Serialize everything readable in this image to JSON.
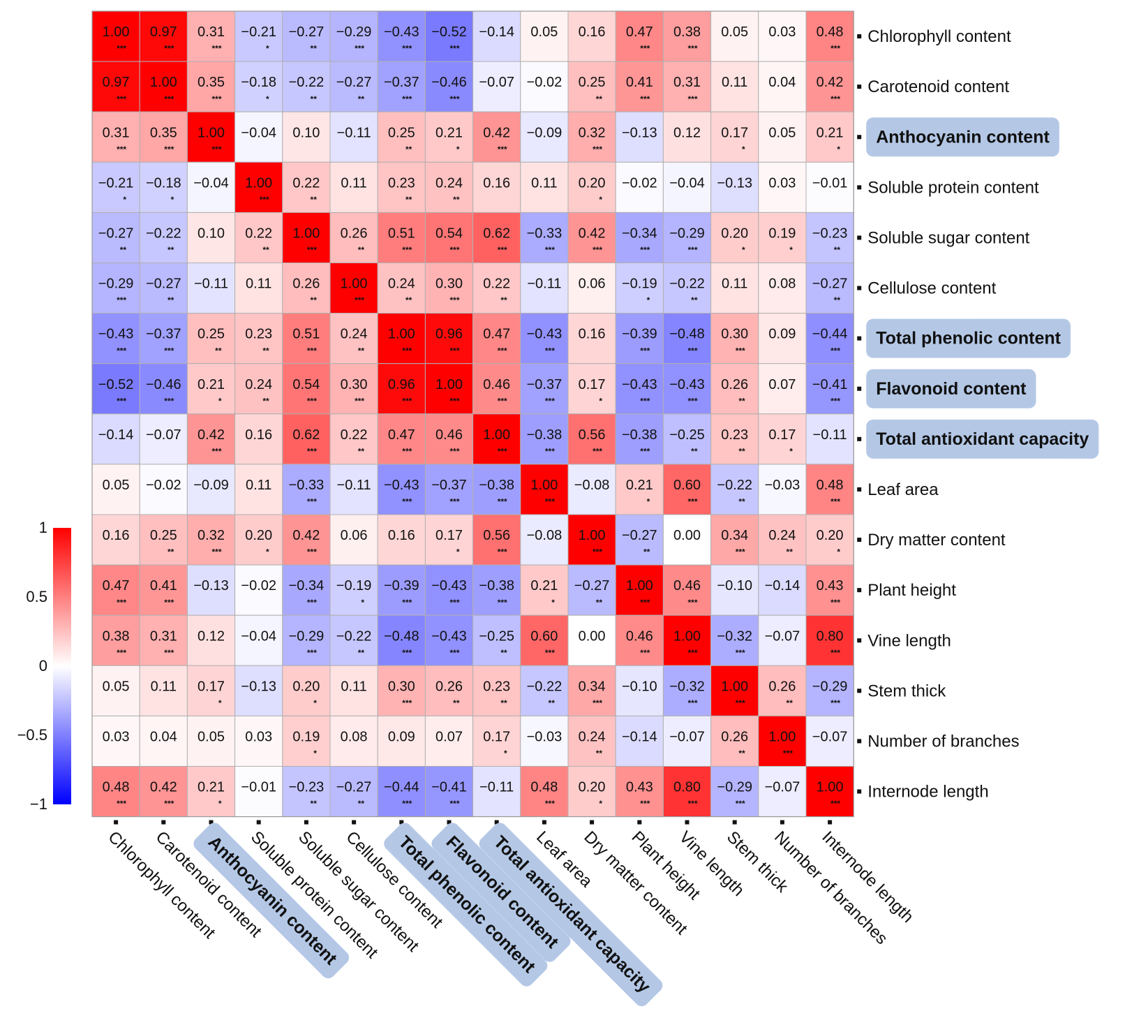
{
  "chart_data": {
    "type": "heatmap",
    "title": "",
    "variables": [
      "Chlorophyll content",
      "Carotenoid content",
      "Anthocyanin content",
      "Soluble protein content",
      "Soluble sugar content",
      "Cellulose content",
      "Total phenolic content",
      "Flavonoid content",
      "Total antioxidant capacity",
      "Leaf area",
      "Dry matter content",
      "Plant height",
      "Vine length",
      "Stem thick",
      "Number of branches",
      "Internode length"
    ],
    "highlighted": [
      "Anthocyanin content",
      "Total phenolic content",
      "Flavonoid content",
      "Total antioxidant capacity"
    ],
    "values": [
      [
        1.0,
        0.97,
        0.31,
        -0.21,
        -0.27,
        -0.29,
        -0.43,
        -0.52,
        -0.14,
        0.05,
        0.16,
        0.47,
        0.38,
        0.05,
        0.03,
        0.48
      ],
      [
        0.97,
        1.0,
        0.35,
        -0.18,
        -0.22,
        -0.27,
        -0.37,
        -0.46,
        -0.07,
        -0.02,
        0.25,
        0.41,
        0.31,
        0.11,
        0.04,
        0.42
      ],
      [
        0.31,
        0.35,
        1.0,
        -0.04,
        0.1,
        -0.11,
        0.25,
        0.21,
        0.42,
        -0.09,
        0.32,
        -0.13,
        0.12,
        0.17,
        0.05,
        0.21
      ],
      [
        -0.21,
        -0.18,
        -0.04,
        1.0,
        0.22,
        0.11,
        0.23,
        0.24,
        0.16,
        0.11,
        0.2,
        -0.02,
        -0.04,
        -0.13,
        0.03,
        -0.01
      ],
      [
        -0.27,
        -0.22,
        0.1,
        0.22,
        1.0,
        0.26,
        0.51,
        0.54,
        0.62,
        -0.33,
        0.42,
        -0.34,
        -0.29,
        0.2,
        0.19,
        -0.23
      ],
      [
        -0.29,
        -0.27,
        -0.11,
        0.11,
        0.26,
        1.0,
        0.24,
        0.3,
        0.22,
        -0.11,
        0.06,
        -0.19,
        -0.22,
        0.11,
        0.08,
        -0.27
      ],
      [
        -0.43,
        -0.37,
        0.25,
        0.23,
        0.51,
        0.24,
        1.0,
        0.96,
        0.47,
        -0.43,
        0.16,
        -0.39,
        -0.48,
        0.3,
        0.09,
        -0.44
      ],
      [
        -0.52,
        -0.46,
        0.21,
        0.24,
        0.54,
        0.3,
        0.96,
        1.0,
        0.46,
        -0.37,
        0.17,
        -0.43,
        -0.43,
        0.26,
        0.07,
        -0.41
      ],
      [
        -0.14,
        -0.07,
        0.42,
        0.16,
        0.62,
        0.22,
        0.47,
        0.46,
        1.0,
        -0.38,
        0.56,
        -0.38,
        -0.25,
        0.23,
        0.17,
        -0.11
      ],
      [
        0.05,
        -0.02,
        -0.09,
        0.11,
        -0.33,
        -0.11,
        -0.43,
        -0.37,
        -0.38,
        1.0,
        -0.08,
        0.21,
        0.6,
        -0.22,
        -0.03,
        0.48
      ],
      [
        0.16,
        0.25,
        0.32,
        0.2,
        0.42,
        0.06,
        0.16,
        0.17,
        0.56,
        -0.08,
        1.0,
        -0.27,
        0.0,
        0.34,
        0.24,
        0.2
      ],
      [
        0.47,
        0.41,
        -0.13,
        -0.02,
        -0.34,
        -0.19,
        -0.39,
        -0.43,
        -0.38,
        0.21,
        -0.27,
        1.0,
        0.46,
        -0.1,
        -0.14,
        0.43
      ],
      [
        0.38,
        0.31,
        0.12,
        -0.04,
        -0.29,
        -0.22,
        -0.48,
        -0.43,
        -0.25,
        0.6,
        0.0,
        0.46,
        1.0,
        -0.32,
        -0.07,
        0.8
      ],
      [
        0.05,
        0.11,
        0.17,
        -0.13,
        0.2,
        0.11,
        0.3,
        0.26,
        0.23,
        -0.22,
        0.34,
        -0.1,
        -0.32,
        1.0,
        0.26,
        -0.29
      ],
      [
        0.03,
        0.04,
        0.05,
        0.03,
        0.19,
        0.08,
        0.09,
        0.07,
        0.17,
        -0.03,
        0.24,
        -0.14,
        -0.07,
        0.26,
        1.0,
        -0.07
      ],
      [
        0.48,
        0.42,
        0.21,
        -0.01,
        -0.23,
        -0.27,
        -0.44,
        -0.41,
        -0.11,
        0.48,
        0.2,
        0.43,
        0.8,
        -0.29,
        -0.07,
        1.0
      ]
    ],
    "significance": [
      [
        "***",
        "***",
        "***",
        "*",
        "**",
        "***",
        "***",
        "***",
        "",
        "",
        "",
        "***",
        "***",
        "",
        "",
        "***"
      ],
      [
        "***",
        "***",
        "***",
        "*",
        "**",
        "**",
        "***",
        "***",
        "",
        "",
        "**",
        "***",
        "***",
        "",
        "",
        "***"
      ],
      [
        "***",
        "***",
        "***",
        "",
        "",
        "",
        "**",
        "*",
        "***",
        "",
        "***",
        "",
        "",
        "*",
        "",
        "*"
      ],
      [
        "*",
        "*",
        "",
        "***",
        "**",
        "",
        "**",
        "**",
        "",
        "",
        "*",
        "",
        "",
        "",
        "",
        ""
      ],
      [
        "**",
        "**",
        "",
        "**",
        "***",
        "**",
        "***",
        "***",
        "***",
        "***",
        "***",
        "***",
        "***",
        "*",
        "*",
        "**"
      ],
      [
        "***",
        "**",
        "",
        "",
        "**",
        "***",
        "**",
        "***",
        "**",
        "",
        "",
        "*",
        "**",
        "",
        "",
        "**"
      ],
      [
        "***",
        "***",
        "**",
        "**",
        "***",
        "**",
        "***",
        "***",
        "***",
        "***",
        "",
        "***",
        "***",
        "***",
        "",
        "***"
      ],
      [
        "***",
        "***",
        "*",
        "**",
        "***",
        "***",
        "***",
        "***",
        "***",
        "***",
        "*",
        "***",
        "***",
        "**",
        "",
        "***"
      ],
      [
        "",
        "",
        "***",
        "",
        "***",
        "**",
        "***",
        "***",
        "***",
        "***",
        "***",
        "***",
        "**",
        "**",
        "*",
        ""
      ],
      [
        "",
        "",
        "",
        "",
        "***",
        "",
        "***",
        "***",
        "***",
        "***",
        "",
        "*",
        "***",
        "**",
        "",
        "***"
      ],
      [
        "",
        "**",
        "***",
        "*",
        "***",
        "",
        "",
        "*",
        "***",
        "",
        "***",
        "**",
        "",
        "***",
        "**",
        "*"
      ],
      [
        "***",
        "***",
        "",
        "",
        "***",
        "*",
        "***",
        "***",
        "***",
        "*",
        "**",
        "***",
        "***",
        "",
        "",
        "***"
      ],
      [
        "***",
        "***",
        "",
        "",
        "***",
        "**",
        "***",
        "***",
        "**",
        "***",
        "",
        "***",
        "***",
        "***",
        "",
        "***"
      ],
      [
        "",
        "",
        "*",
        "",
        "*",
        "",
        "***",
        "**",
        "**",
        "**",
        "***",
        "",
        "***",
        "***",
        "**",
        "***"
      ],
      [
        "",
        "",
        "",
        "",
        "*",
        "",
        "",
        "",
        "*",
        "",
        "**",
        "",
        "",
        "**",
        "***",
        ""
      ],
      [
        "***",
        "***",
        "*",
        "",
        "**",
        "**",
        "***",
        "***",
        "",
        "***",
        "*",
        "***",
        "***",
        "***",
        "",
        "***"
      ]
    ],
    "colorbar": {
      "range": [
        -1,
        1
      ],
      "ticks": [
        "1",
        "0.5",
        "0",
        "−0.5",
        "−1"
      ],
      "low_color": "#0000ff",
      "mid_color": "#ffffff",
      "high_color": "#ff0000"
    },
    "highlight_color": "#b4c8e6"
  }
}
